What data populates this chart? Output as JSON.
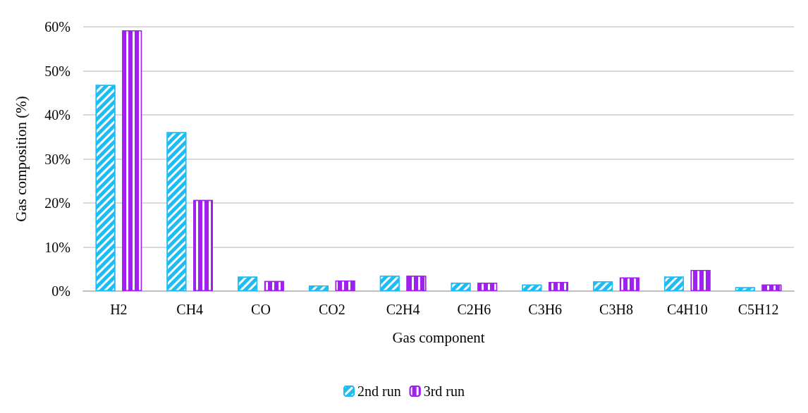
{
  "chart_data": {
    "type": "bar",
    "xlabel": "Gas component",
    "ylabel": "Gas composition (%)",
    "categories": [
      "H2",
      "CH4",
      "CO",
      "CO2",
      "C2H4",
      "C2H6",
      "C3H6",
      "C3H8",
      "C4H10",
      "C5H12"
    ],
    "series": [
      {
        "name": "2nd run",
        "color": "#1ebcf5",
        "values": [
          46.8,
          36.1,
          3.3,
          1.3,
          3.5,
          1.9,
          1.5,
          2.2,
          3.3,
          0.9
        ]
      },
      {
        "name": "3rd run",
        "color": "#a020f0",
        "values": [
          59.2,
          20.7,
          2.3,
          2.4,
          3.5,
          1.9,
          2.1,
          3.1,
          4.8,
          1.5
        ]
      }
    ],
    "ylim": [
      0,
      60
    ],
    "yticks": [
      {
        "value": 0,
        "label": "0%"
      },
      {
        "value": 10,
        "label": "10%"
      },
      {
        "value": 20,
        "label": "20%"
      },
      {
        "value": 30,
        "label": "30%"
      },
      {
        "value": 40,
        "label": "40%"
      },
      {
        "value": 50,
        "label": "50%"
      },
      {
        "value": 60,
        "label": "60%"
      }
    ],
    "grid": "y",
    "legend": "bottom"
  }
}
